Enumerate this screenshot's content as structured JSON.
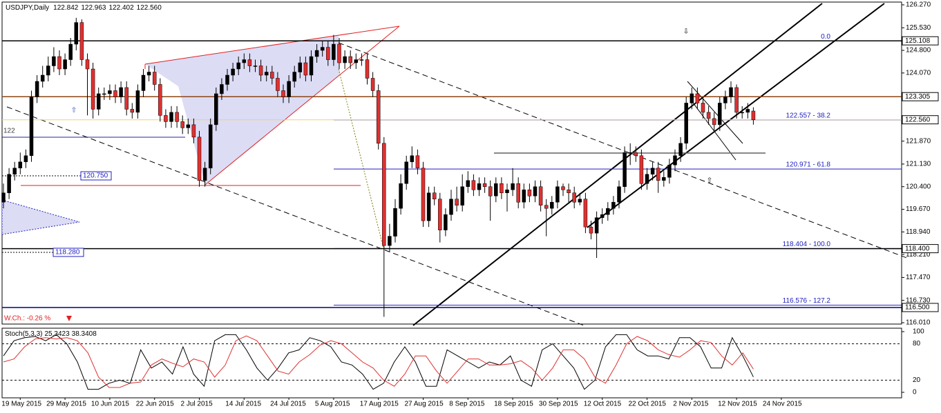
{
  "chart_data": {
    "type": "candlestick",
    "symbol": "USDJPY,Daily",
    "last_labels": [
      "122.842",
      "122.963",
      "122.402",
      "122.560"
    ],
    "ylim": [
      116.01,
      126.27
    ],
    "yticks": [
      {
        "value": 126.27,
        "label": "126.270"
      },
      {
        "value": 125.53,
        "label": "125.530"
      },
      {
        "value": 124.8,
        "label": "124.800"
      },
      {
        "value": 124.07,
        "label": "124.070"
      },
      {
        "value": 121.87,
        "label": "121.870"
      },
      {
        "value": 121.13,
        "label": "121.130"
      },
      {
        "value": 120.4,
        "label": "120.400"
      },
      {
        "value": 119.67,
        "label": "119.670"
      },
      {
        "value": 118.94,
        "label": "118.940"
      },
      {
        "value": 118.21,
        "label": "118.210"
      },
      {
        "value": 117.47,
        "label": "117.470"
      },
      {
        "value": 116.73,
        "label": "116.730"
      },
      {
        "value": 116.01,
        "label": "116.010"
      }
    ],
    "levels": [
      {
        "value": 125.108,
        "label": "125.108",
        "color": "#000000"
      },
      {
        "value": 123.305,
        "label": "123.305",
        "color": "#8b4513"
      },
      {
        "value": 122.56,
        "label": "122.560",
        "color": "#f0d070"
      },
      {
        "value": 118.4,
        "label": "118.400",
        "color": "#000000"
      },
      {
        "value": 116.5,
        "label": "116.500",
        "color": "#000080"
      }
    ],
    "fibo": [
      {
        "value": 125.108,
        "label": "0.0"
      },
      {
        "value": 122.557,
        "label": "122.557 - 38.2"
      },
      {
        "value": 120.971,
        "label": "120.971 - 61.8"
      },
      {
        "value": 118.404,
        "label": "118.404 - 100.0"
      },
      {
        "value": 116.576,
        "label": "116.576 - 127.2"
      }
    ],
    "left_levels": [
      {
        "value": 120.75,
        "label": "120.750"
      },
      {
        "value": 118.28,
        "label": "118.280"
      }
    ],
    "annotation": "122",
    "week_change": "W.Ch.: -0.26 %",
    "x_labels": [
      "19 May 2015",
      "29 May 2015",
      "10 Jun 2015",
      "22 Jun 2015",
      "2 Jul 2015",
      "14 Jul 2015",
      "24 Jul 2015",
      "5 Aug 2015",
      "17 Aug 2015",
      "27 Aug 2015",
      "8 Sep 2015",
      "18 Sep 2015",
      "30 Sep 2015",
      "12 Oct 2015",
      "22 Oct 2015",
      "2 Nov 2015",
      "12 Nov 2015",
      "24 Nov 2015"
    ],
    "up_color": "#000000",
    "down_color": "#e03030",
    "ohlc": [
      [
        119.9,
        120.5,
        119.7,
        120.2
      ],
      [
        120.2,
        121.0,
        120.0,
        120.8
      ],
      [
        120.8,
        121.2,
        120.6,
        121.0
      ],
      [
        121.0,
        121.5,
        120.8,
        121.2
      ],
      [
        121.2,
        121.6,
        121.0,
        121.4
      ],
      [
        121.4,
        123.5,
        121.2,
        123.3
      ],
      [
        123.3,
        124.0,
        123.1,
        123.8
      ],
      [
        123.8,
        124.3,
        123.6,
        124.0
      ],
      [
        124.0,
        124.6,
        123.8,
        124.3
      ],
      [
        124.3,
        124.9,
        124.1,
        124.6
      ],
      [
        124.6,
        124.8,
        124.0,
        124.2
      ],
      [
        124.2,
        124.7,
        124.0,
        124.5
      ],
      [
        124.5,
        125.2,
        124.3,
        125.0
      ],
      [
        125.0,
        125.85,
        124.8,
        125.7
      ],
      [
        125.7,
        125.8,
        124.3,
        124.5
      ],
      [
        124.5,
        124.7,
        122.7,
        124.2
      ],
      [
        124.2,
        124.4,
        122.6,
        122.9
      ],
      [
        122.9,
        123.6,
        122.7,
        123.4
      ],
      [
        123.4,
        123.6,
        123.2,
        123.4
      ],
      [
        123.4,
        123.7,
        123.2,
        123.5
      ],
      [
        123.5,
        123.7,
        123.1,
        123.3
      ],
      [
        123.3,
        123.8,
        123.1,
        123.6
      ],
      [
        123.6,
        123.8,
        122.7,
        122.9
      ],
      [
        122.9,
        123.1,
        122.6,
        122.8
      ],
      [
        122.8,
        123.7,
        122.6,
        123.5
      ],
      [
        123.5,
        124.2,
        123.3,
        124.0
      ],
      [
        124.0,
        124.3,
        123.8,
        124.1
      ],
      [
        124.1,
        124.3,
        123.5,
        123.7
      ],
      [
        123.7,
        123.9,
        122.5,
        122.7
      ],
      [
        122.7,
        122.9,
        122.3,
        122.5
      ],
      [
        122.5,
        123.0,
        122.3,
        122.8
      ],
      [
        122.8,
        123.0,
        122.3,
        122.5
      ],
      [
        122.5,
        122.7,
        122.1,
        122.3
      ],
      [
        122.3,
        122.6,
        122.1,
        122.4
      ],
      [
        122.4,
        122.6,
        121.8,
        122.0
      ],
      [
        122.0,
        122.2,
        120.4,
        120.6
      ],
      [
        120.6,
        121.2,
        120.4,
        121.0
      ],
      [
        121.0,
        122.6,
        120.8,
        122.4
      ],
      [
        122.4,
        123.6,
        122.2,
        123.4
      ],
      [
        123.4,
        123.9,
        123.2,
        123.7
      ],
      [
        123.7,
        124.2,
        123.5,
        124.0
      ],
      [
        124.0,
        124.4,
        123.8,
        124.2
      ],
      [
        124.2,
        124.6,
        124.0,
        124.4
      ],
      [
        124.4,
        124.7,
        124.2,
        124.5
      ],
      [
        124.5,
        124.7,
        124.1,
        124.3
      ],
      [
        124.3,
        124.5,
        124.1,
        124.3
      ],
      [
        124.3,
        124.5,
        123.8,
        124.0
      ],
      [
        124.0,
        124.3,
        123.8,
        124.1
      ],
      [
        124.1,
        124.3,
        123.7,
        123.9
      ],
      [
        123.9,
        124.1,
        123.3,
        123.5
      ],
      [
        123.5,
        123.7,
        123.1,
        123.3
      ],
      [
        123.3,
        124.0,
        123.1,
        123.8
      ],
      [
        123.8,
        124.3,
        123.6,
        124.1
      ],
      [
        124.1,
        124.6,
        123.9,
        124.4
      ],
      [
        124.4,
        124.6,
        123.8,
        124.0
      ],
      [
        124.0,
        124.8,
        123.8,
        124.6
      ],
      [
        124.6,
        125.0,
        124.4,
        124.8
      ],
      [
        124.8,
        125.1,
        124.6,
        124.9
      ],
      [
        124.9,
        125.1,
        124.3,
        124.5
      ],
      [
        124.5,
        125.3,
        124.3,
        125.0
      ],
      [
        125.0,
        125.2,
        124.2,
        124.4
      ],
      [
        124.4,
        124.8,
        124.2,
        124.6
      ],
      [
        124.6,
        124.8,
        124.2,
        124.4
      ],
      [
        124.4,
        124.7,
        124.2,
        124.5
      ],
      [
        124.5,
        124.7,
        124.3,
        124.5
      ],
      [
        124.5,
        124.7,
        123.7,
        123.9
      ],
      [
        123.9,
        124.1,
        123.3,
        123.5
      ],
      [
        123.5,
        123.7,
        121.6,
        121.8
      ],
      [
        121.8,
        122.0,
        116.2,
        118.5
      ],
      [
        118.5,
        119.2,
        118.3,
        118.8
      ],
      [
        118.8,
        120.0,
        118.6,
        119.7
      ],
      [
        119.7,
        120.8,
        119.5,
        120.5
      ],
      [
        120.5,
        121.4,
        120.3,
        121.2
      ],
      [
        121.2,
        121.7,
        121.0,
        121.4
      ],
      [
        121.4,
        121.6,
        120.8,
        121.0
      ],
      [
        121.0,
        121.2,
        119.1,
        119.3
      ],
      [
        119.3,
        120.4,
        119.1,
        120.2
      ],
      [
        120.2,
        120.4,
        119.8,
        120.0
      ],
      [
        120.0,
        120.2,
        118.6,
        119.0
      ],
      [
        119.0,
        119.7,
        118.8,
        119.5
      ],
      [
        119.5,
        120.3,
        119.3,
        120.0
      ],
      [
        120.0,
        120.4,
        119.6,
        119.8
      ],
      [
        119.8,
        120.8,
        119.6,
        120.4
      ],
      [
        120.4,
        120.9,
        120.2,
        120.6
      ],
      [
        120.6,
        120.8,
        120.1,
        120.3
      ],
      [
        120.3,
        120.7,
        120.1,
        120.5
      ],
      [
        120.5,
        120.7,
        120.2,
        120.4
      ],
      [
        120.4,
        120.6,
        119.3,
        120.1
      ],
      [
        120.1,
        120.7,
        119.9,
        120.5
      ],
      [
        120.5,
        120.7,
        120.0,
        120.2
      ],
      [
        120.2,
        120.5,
        119.6,
        120.3
      ],
      [
        120.3,
        121.0,
        120.1,
        120.5
      ],
      [
        120.5,
        120.7,
        119.7,
        119.9
      ],
      [
        119.9,
        120.5,
        119.7,
        120.3
      ],
      [
        120.3,
        120.5,
        119.9,
        120.1
      ],
      [
        120.1,
        120.6,
        119.9,
        120.4
      ],
      [
        120.4,
        120.6,
        119.6,
        119.8
      ],
      [
        119.8,
        120.0,
        118.8,
        119.7
      ],
      [
        119.7,
        120.1,
        119.5,
        119.9
      ],
      [
        119.9,
        120.6,
        119.7,
        120.4
      ],
      [
        120.4,
        120.5,
        120.1,
        120.3
      ],
      [
        120.3,
        120.5,
        119.9,
        120.2
      ],
      [
        120.2,
        120.4,
        119.7,
        119.9
      ],
      [
        119.9,
        120.2,
        119.8,
        120.0
      ],
      [
        120.0,
        120.2,
        118.9,
        119.1
      ],
      [
        119.1,
        119.3,
        118.7,
        118.9
      ],
      [
        118.9,
        119.6,
        118.1,
        119.4
      ],
      [
        119.4,
        119.7,
        119.2,
        119.5
      ],
      [
        119.5,
        119.9,
        119.3,
        119.7
      ],
      [
        119.7,
        120.1,
        119.5,
        119.9
      ],
      [
        119.9,
        120.6,
        119.7,
        120.4
      ],
      [
        120.4,
        121.7,
        120.2,
        121.5
      ],
      [
        121.5,
        121.8,
        121.1,
        121.5
      ],
      [
        121.5,
        121.7,
        121.2,
        121.4
      ],
      [
        121.4,
        121.6,
        120.3,
        120.5
      ],
      [
        120.5,
        121.0,
        120.3,
        120.8
      ],
      [
        120.8,
        121.2,
        120.6,
        121.0
      ],
      [
        121.0,
        121.2,
        120.2,
        120.6
      ],
      [
        120.6,
        120.9,
        120.4,
        120.7
      ],
      [
        120.7,
        121.3,
        120.5,
        121.1
      ],
      [
        121.1,
        121.6,
        120.9,
        121.4
      ],
      [
        121.4,
        122.0,
        121.2,
        121.8
      ],
      [
        121.8,
        123.3,
        121.6,
        123.1
      ],
      [
        123.1,
        123.6,
        122.9,
        123.4
      ],
      [
        123.4,
        123.6,
        122.9,
        123.1
      ],
      [
        123.1,
        123.3,
        122.6,
        122.8
      ],
      [
        122.8,
        123.0,
        122.4,
        122.6
      ],
      [
        122.6,
        122.8,
        122.2,
        122.4
      ],
      [
        122.4,
        123.3,
        122.2,
        123.1
      ],
      [
        123.1,
        123.5,
        122.9,
        123.3
      ],
      [
        123.3,
        123.8,
        123.1,
        123.6
      ],
      [
        123.6,
        123.7,
        122.6,
        122.8
      ],
      [
        122.8,
        123.0,
        122.6,
        122.8
      ],
      [
        122.8,
        123.1,
        122.6,
        122.9
      ],
      [
        122.842,
        122.963,
        122.402,
        122.56
      ]
    ],
    "stoch": {
      "name": "Stoch(5,3,3)",
      "ylim": [
        0,
        100
      ],
      "yticks": [
        0,
        20,
        80,
        100
      ],
      "series": [
        {
          "name": "main",
          "color": "#000000",
          "values": [
            60,
            85,
            90,
            92,
            85,
            95,
            80,
            50,
            5,
            5,
            15,
            20,
            15,
            70,
            40,
            50,
            30,
            75,
            30,
            10,
            85,
            95,
            95,
            70,
            40,
            20,
            40,
            65,
            70,
            90,
            85,
            75,
            50,
            45,
            30,
            5,
            15,
            50,
            75,
            50,
            10,
            10,
            70,
            60,
            50,
            40,
            50,
            45,
            60,
            20,
            10,
            70,
            80,
            60,
            40,
            5,
            20,
            75,
            95,
            95,
            70,
            60,
            60,
            55,
            90,
            90,
            75,
            40,
            40,
            90,
            60,
            25.3423
          ]
        },
        {
          "name": "signal",
          "color": "#e03030",
          "values": [
            50,
            55,
            75,
            88,
            90,
            88,
            90,
            85,
            65,
            25,
            8,
            8,
            15,
            17,
            45,
            55,
            48,
            42,
            55,
            50,
            25,
            45,
            85,
            93,
            85,
            60,
            35,
            30,
            50,
            62,
            78,
            85,
            80,
            65,
            50,
            40,
            20,
            10,
            30,
            60,
            60,
            35,
            15,
            35,
            55,
            55,
            45,
            45,
            47,
            52,
            40,
            20,
            40,
            70,
            70,
            55,
            25,
            15,
            45,
            80,
            92,
            85,
            70,
            62,
            58,
            70,
            85,
            82,
            60,
            45,
            65,
            38.3408
          ]
        }
      ]
    }
  }
}
